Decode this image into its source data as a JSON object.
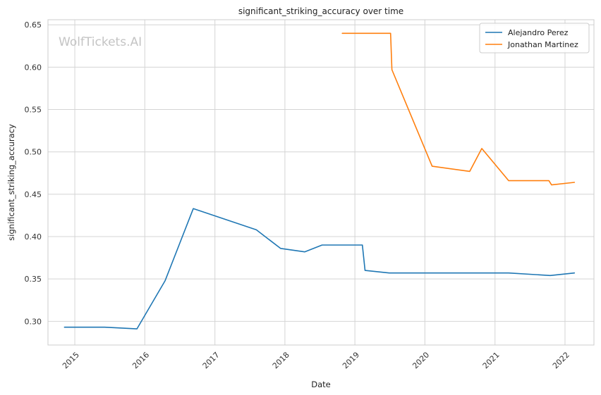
{
  "chart_data": {
    "type": "line",
    "title": "significant_striking_accuracy over time",
    "xlabel": "Date",
    "ylabel": "significant_striking_accuracy",
    "watermark": "WolfTickets.AI",
    "xlim": [
      "2014-08-14",
      "2022-06-01"
    ],
    "ylim": [
      0.272,
      0.656
    ],
    "x_ticks": [
      {
        "date": "2015-01-01",
        "label": "2015"
      },
      {
        "date": "2016-01-01",
        "label": "2016"
      },
      {
        "date": "2017-01-01",
        "label": "2017"
      },
      {
        "date": "2018-01-01",
        "label": "2018"
      },
      {
        "date": "2019-01-01",
        "label": "2019"
      },
      {
        "date": "2020-01-01",
        "label": "2020"
      },
      {
        "date": "2021-01-01",
        "label": "2021"
      },
      {
        "date": "2022-01-01",
        "label": "2022"
      }
    ],
    "y_ticks": [
      {
        "value": 0.3,
        "label": "0.30"
      },
      {
        "value": 0.35,
        "label": "0.35"
      },
      {
        "value": 0.4,
        "label": "0.40"
      },
      {
        "value": 0.45,
        "label": "0.45"
      },
      {
        "value": 0.5,
        "label": "0.50"
      },
      {
        "value": 0.55,
        "label": "0.55"
      },
      {
        "value": 0.6,
        "label": "0.60"
      },
      {
        "value": 0.65,
        "label": "0.65"
      }
    ],
    "grid": true,
    "legend_position": "top-right",
    "series": [
      {
        "name": "Alejandro Perez",
        "color": "#1f77b4",
        "points": [
          {
            "x": "2014-11-08",
            "y": 0.293
          },
          {
            "x": "2015-06-06",
            "y": 0.293
          },
          {
            "x": "2015-11-21",
            "y": 0.291
          },
          {
            "x": "2016-04-16",
            "y": 0.348
          },
          {
            "x": "2016-09-10",
            "y": 0.433
          },
          {
            "x": "2017-08-05",
            "y": 0.408
          },
          {
            "x": "2017-12-09",
            "y": 0.386
          },
          {
            "x": "2018-04-14",
            "y": 0.382
          },
          {
            "x": "2018-07-14",
            "y": 0.39
          },
          {
            "x": "2019-02-09",
            "y": 0.39
          },
          {
            "x": "2019-02-23",
            "y": 0.36
          },
          {
            "x": "2019-06-29",
            "y": 0.357
          },
          {
            "x": "2021-03-13",
            "y": 0.357
          },
          {
            "x": "2021-10-16",
            "y": 0.354
          },
          {
            "x": "2022-02-19",
            "y": 0.357
          }
        ]
      },
      {
        "name": "Jonathan Martinez",
        "color": "#ff7f0e",
        "points": [
          {
            "x": "2018-10-27",
            "y": 0.64
          },
          {
            "x": "2019-07-06",
            "y": 0.64
          },
          {
            "x": "2019-07-13",
            "y": 0.597
          },
          {
            "x": "2020-02-08",
            "y": 0.483
          },
          {
            "x": "2020-08-22",
            "y": 0.477
          },
          {
            "x": "2020-10-24",
            "y": 0.504
          },
          {
            "x": "2021-03-13",
            "y": 0.466
          },
          {
            "x": "2021-10-09",
            "y": 0.466
          },
          {
            "x": "2021-10-23",
            "y": 0.461
          },
          {
            "x": "2022-02-19",
            "y": 0.464
          }
        ]
      }
    ]
  }
}
